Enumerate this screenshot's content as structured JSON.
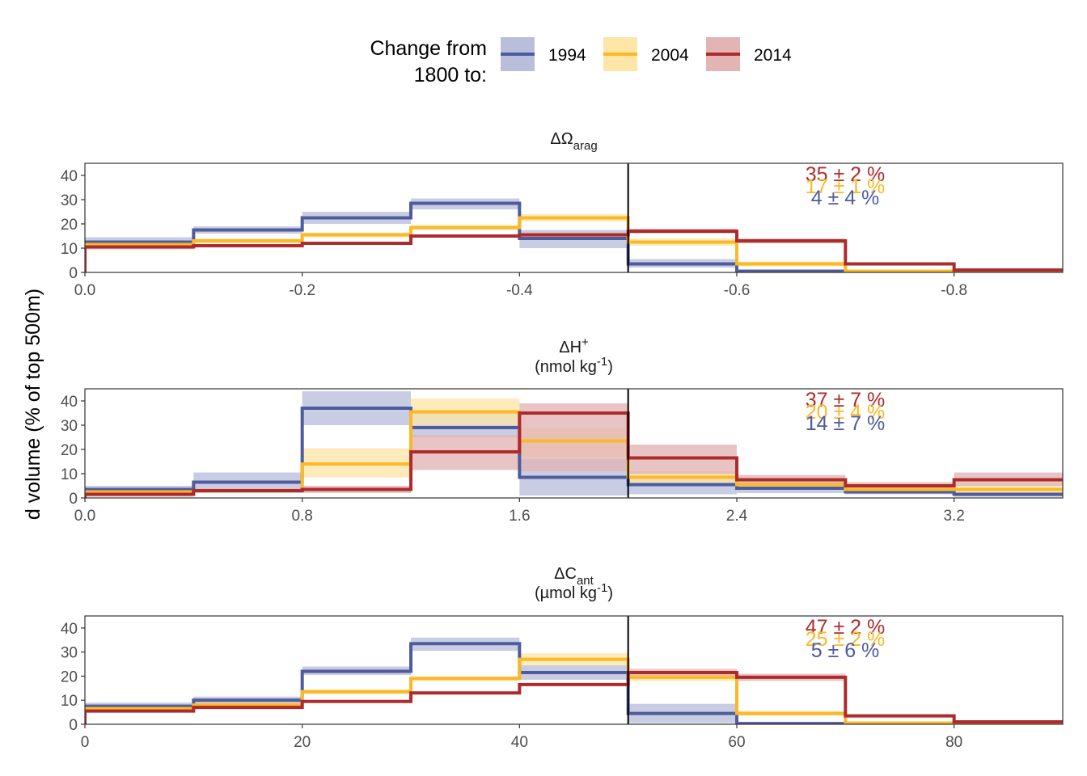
{
  "legend": {
    "title_line1": "Change from",
    "title_line2": "1800 to:"
  },
  "y_axis_label": "d volume (% of top 500m)",
  "chart_data": [
    {
      "type": "step-histogram",
      "title": {
        "base": "ΔΩ",
        "sub": "arag",
        "sup": "",
        "unit_base": "",
        "unit_sup": "",
        "unit_end": ""
      },
      "reversed_x": true,
      "xlim": [
        0.0,
        -0.9
      ],
      "ylim": [
        0,
        45
      ],
      "xticks": [
        0.0,
        -0.2,
        -0.4,
        -0.6,
        -0.8
      ],
      "xtick_labels": [
        "0.0",
        "-0.2",
        "-0.4",
        "-0.6",
        "-0.8"
      ],
      "yticks": [
        0,
        10,
        20,
        30,
        40
      ],
      "ytick_labels": [
        "0",
        "10",
        "20",
        "30",
        "40"
      ],
      "vline_x": -0.5,
      "bin_edges": [
        0.0,
        -0.1,
        -0.2,
        -0.3,
        -0.4,
        -0.5,
        -0.6,
        -0.7,
        -0.8,
        -0.9
      ],
      "series": [
        {
          "name": "1994",
          "color": "#4e5c9d",
          "band_color": "#b9bfdb",
          "values": [
            12.5,
            17.5,
            22.5,
            28.5,
            14.0,
            3.5,
            0.5,
            0.1,
            0.0
          ],
          "lower": [
            10.5,
            16.0,
            20.0,
            26.0,
            10.0,
            2.0,
            0.1,
            0.0,
            0.0
          ],
          "upper": [
            14.5,
            19.0,
            25.0,
            30.5,
            17.5,
            5.5,
            1.0,
            0.3,
            0.1
          ]
        },
        {
          "name": "2004",
          "color": "#fbb827",
          "band_color": "#fde6a8",
          "values": [
            11.5,
            13.0,
            15.5,
            18.5,
            22.5,
            12.5,
            3.5,
            0.5,
            0.1
          ],
          "lower": [
            10.5,
            12.0,
            14.5,
            17.5,
            21.0,
            11.0,
            2.5,
            0.2,
            0.0
          ],
          "upper": [
            12.5,
            14.0,
            16.5,
            19.5,
            24.0,
            14.0,
            4.5,
            0.8,
            0.2
          ]
        },
        {
          "name": "2014",
          "color": "#ae2b2d",
          "band_color": "#e2b4b4",
          "values": [
            10.5,
            11.0,
            12.0,
            15.0,
            15.5,
            17.0,
            13.0,
            3.5,
            1.0
          ],
          "lower": [
            9.5,
            10.5,
            11.5,
            14.5,
            14.5,
            16.0,
            12.0,
            3.0,
            0.7
          ],
          "upper": [
            11.5,
            11.5,
            12.5,
            15.5,
            16.5,
            18.0,
            14.0,
            4.0,
            1.3
          ]
        }
      ],
      "annotations": [
        {
          "text": "35 ± 2 %",
          "color": "#ae2b2d"
        },
        {
          "text": "17 ± 1 %",
          "color": "#fbb827"
        },
        {
          "text": "4 ± 4 %",
          "color": "#4e5c9d"
        }
      ]
    },
    {
      "type": "step-histogram",
      "title": {
        "base": "ΔH",
        "sub": "",
        "sup": "+",
        "unit_base": "(nmol kg",
        "unit_sup": "-1",
        "unit_end": ")"
      },
      "reversed_x": false,
      "xlim": [
        0.0,
        3.6
      ],
      "ylim": [
        0,
        45
      ],
      "xticks": [
        0.0,
        0.8,
        1.6,
        2.4,
        3.2
      ],
      "xtick_labels": [
        "0.0",
        "0.8",
        "1.6",
        "2.4",
        "3.2"
      ],
      "yticks": [
        0,
        10,
        20,
        30,
        40
      ],
      "ytick_labels": [
        "0",
        "10",
        "20",
        "30",
        "40"
      ],
      "vline_x": 2.0,
      "bin_edges": [
        0.0,
        0.4,
        0.8,
        1.2,
        1.6,
        2.0,
        2.4,
        2.8,
        3.2,
        3.6
      ],
      "series": [
        {
          "name": "1994",
          "color": "#4e5c9d",
          "band_color": "#b9bfdb",
          "values": [
            3.5,
            6.5,
            37.0,
            29.0,
            8.5,
            5.5,
            4.0,
            2.5,
            1.5
          ],
          "lower": [
            2.0,
            3.5,
            30.0,
            25.0,
            1.0,
            1.5,
            2.0,
            1.5,
            0.5
          ],
          "upper": [
            5.0,
            10.5,
            44.0,
            36.0,
            16.0,
            11.0,
            6.5,
            4.0,
            2.5
          ]
        },
        {
          "name": "2004",
          "color": "#fbb827",
          "band_color": "#fde6a8",
          "values": [
            2.5,
            3.0,
            14.0,
            35.5,
            23.5,
            8.5,
            5.5,
            3.5,
            3.5
          ],
          "lower": [
            1.5,
            2.0,
            8.5,
            30.0,
            17.0,
            6.0,
            4.0,
            2.5,
            2.0
          ],
          "upper": [
            3.5,
            4.0,
            20.5,
            41.0,
            29.0,
            11.0,
            7.5,
            5.0,
            5.5
          ]
        },
        {
          "name": "2014",
          "color": "#ae2b2d",
          "band_color": "#e2b4b4",
          "values": [
            1.5,
            3.0,
            3.5,
            19.0,
            35.0,
            16.5,
            7.5,
            5.0,
            7.5
          ],
          "lower": [
            0.5,
            2.0,
            2.0,
            11.5,
            11.0,
            10.0,
            5.0,
            3.5,
            5.0
          ],
          "upper": [
            2.5,
            4.0,
            5.0,
            26.0,
            39.0,
            22.0,
            9.5,
            6.5,
            10.5
          ]
        }
      ],
      "annotations": [
        {
          "text": "37 ± 7 %",
          "color": "#ae2b2d"
        },
        {
          "text": "20 ± 4 %",
          "color": "#fbb827"
        },
        {
          "text": "14 ± 7 %",
          "color": "#4e5c9d"
        }
      ]
    },
    {
      "type": "step-histogram",
      "title": {
        "base": "ΔC",
        "sub": "ant",
        "sup": "",
        "unit_base": "(µmol kg",
        "unit_sup": "-1",
        "unit_end": ")"
      },
      "reversed_x": false,
      "xlim": [
        0,
        90
      ],
      "ylim": [
        0,
        45
      ],
      "xticks": [
        0,
        20,
        40,
        60,
        80
      ],
      "xtick_labels": [
        "0",
        "20",
        "40",
        "60",
        "80"
      ],
      "yticks": [
        0,
        10,
        20,
        30,
        40
      ],
      "ytick_labels": [
        "0",
        "10",
        "20",
        "30",
        "40"
      ],
      "vline_x": 50,
      "bin_edges": [
        0,
        10,
        20,
        30,
        40,
        50,
        60,
        70,
        80,
        90
      ],
      "series": [
        {
          "name": "1994",
          "color": "#4e5c9d",
          "band_color": "#b9bfdb",
          "values": [
            7.5,
            10.0,
            22.0,
            33.5,
            21.5,
            4.5,
            0.3,
            0.1,
            0.0
          ],
          "lower": [
            6.0,
            8.5,
            20.5,
            30.5,
            18.5,
            0.5,
            0.0,
            0.0,
            0.0
          ],
          "upper": [
            9.0,
            11.5,
            24.0,
            36.0,
            24.5,
            8.5,
            0.7,
            0.2,
            0.1
          ]
        },
        {
          "name": "2004",
          "color": "#fbb827",
          "band_color": "#fde6a8",
          "values": [
            6.5,
            8.0,
            13.5,
            19.0,
            27.0,
            19.5,
            4.5,
            0.5,
            0.1
          ],
          "lower": [
            5.5,
            7.0,
            12.5,
            18.0,
            24.5,
            18.0,
            3.5,
            0.2,
            0.0
          ],
          "upper": [
            7.5,
            9.0,
            14.5,
            20.0,
            29.5,
            21.0,
            5.5,
            0.8,
            0.2
          ]
        },
        {
          "name": "2014",
          "color": "#ae2b2d",
          "band_color": "#e2b4b4",
          "values": [
            5.5,
            7.0,
            9.5,
            13.0,
            16.5,
            21.5,
            19.5,
            3.5,
            1.0
          ],
          "lower": [
            5.0,
            6.5,
            9.0,
            12.5,
            16.0,
            20.0,
            18.0,
            3.0,
            0.7
          ],
          "upper": [
            6.0,
            7.5,
            10.0,
            13.5,
            17.0,
            23.0,
            21.0,
            4.0,
            1.3
          ]
        }
      ],
      "annotations": [
        {
          "text": "47 ± 2 %",
          "color": "#ae2b2d"
        },
        {
          "text": "25 ± 2 %",
          "color": "#fbb827"
        },
        {
          "text": "5 ± 6 %",
          "color": "#4e5c9d"
        }
      ]
    }
  ]
}
